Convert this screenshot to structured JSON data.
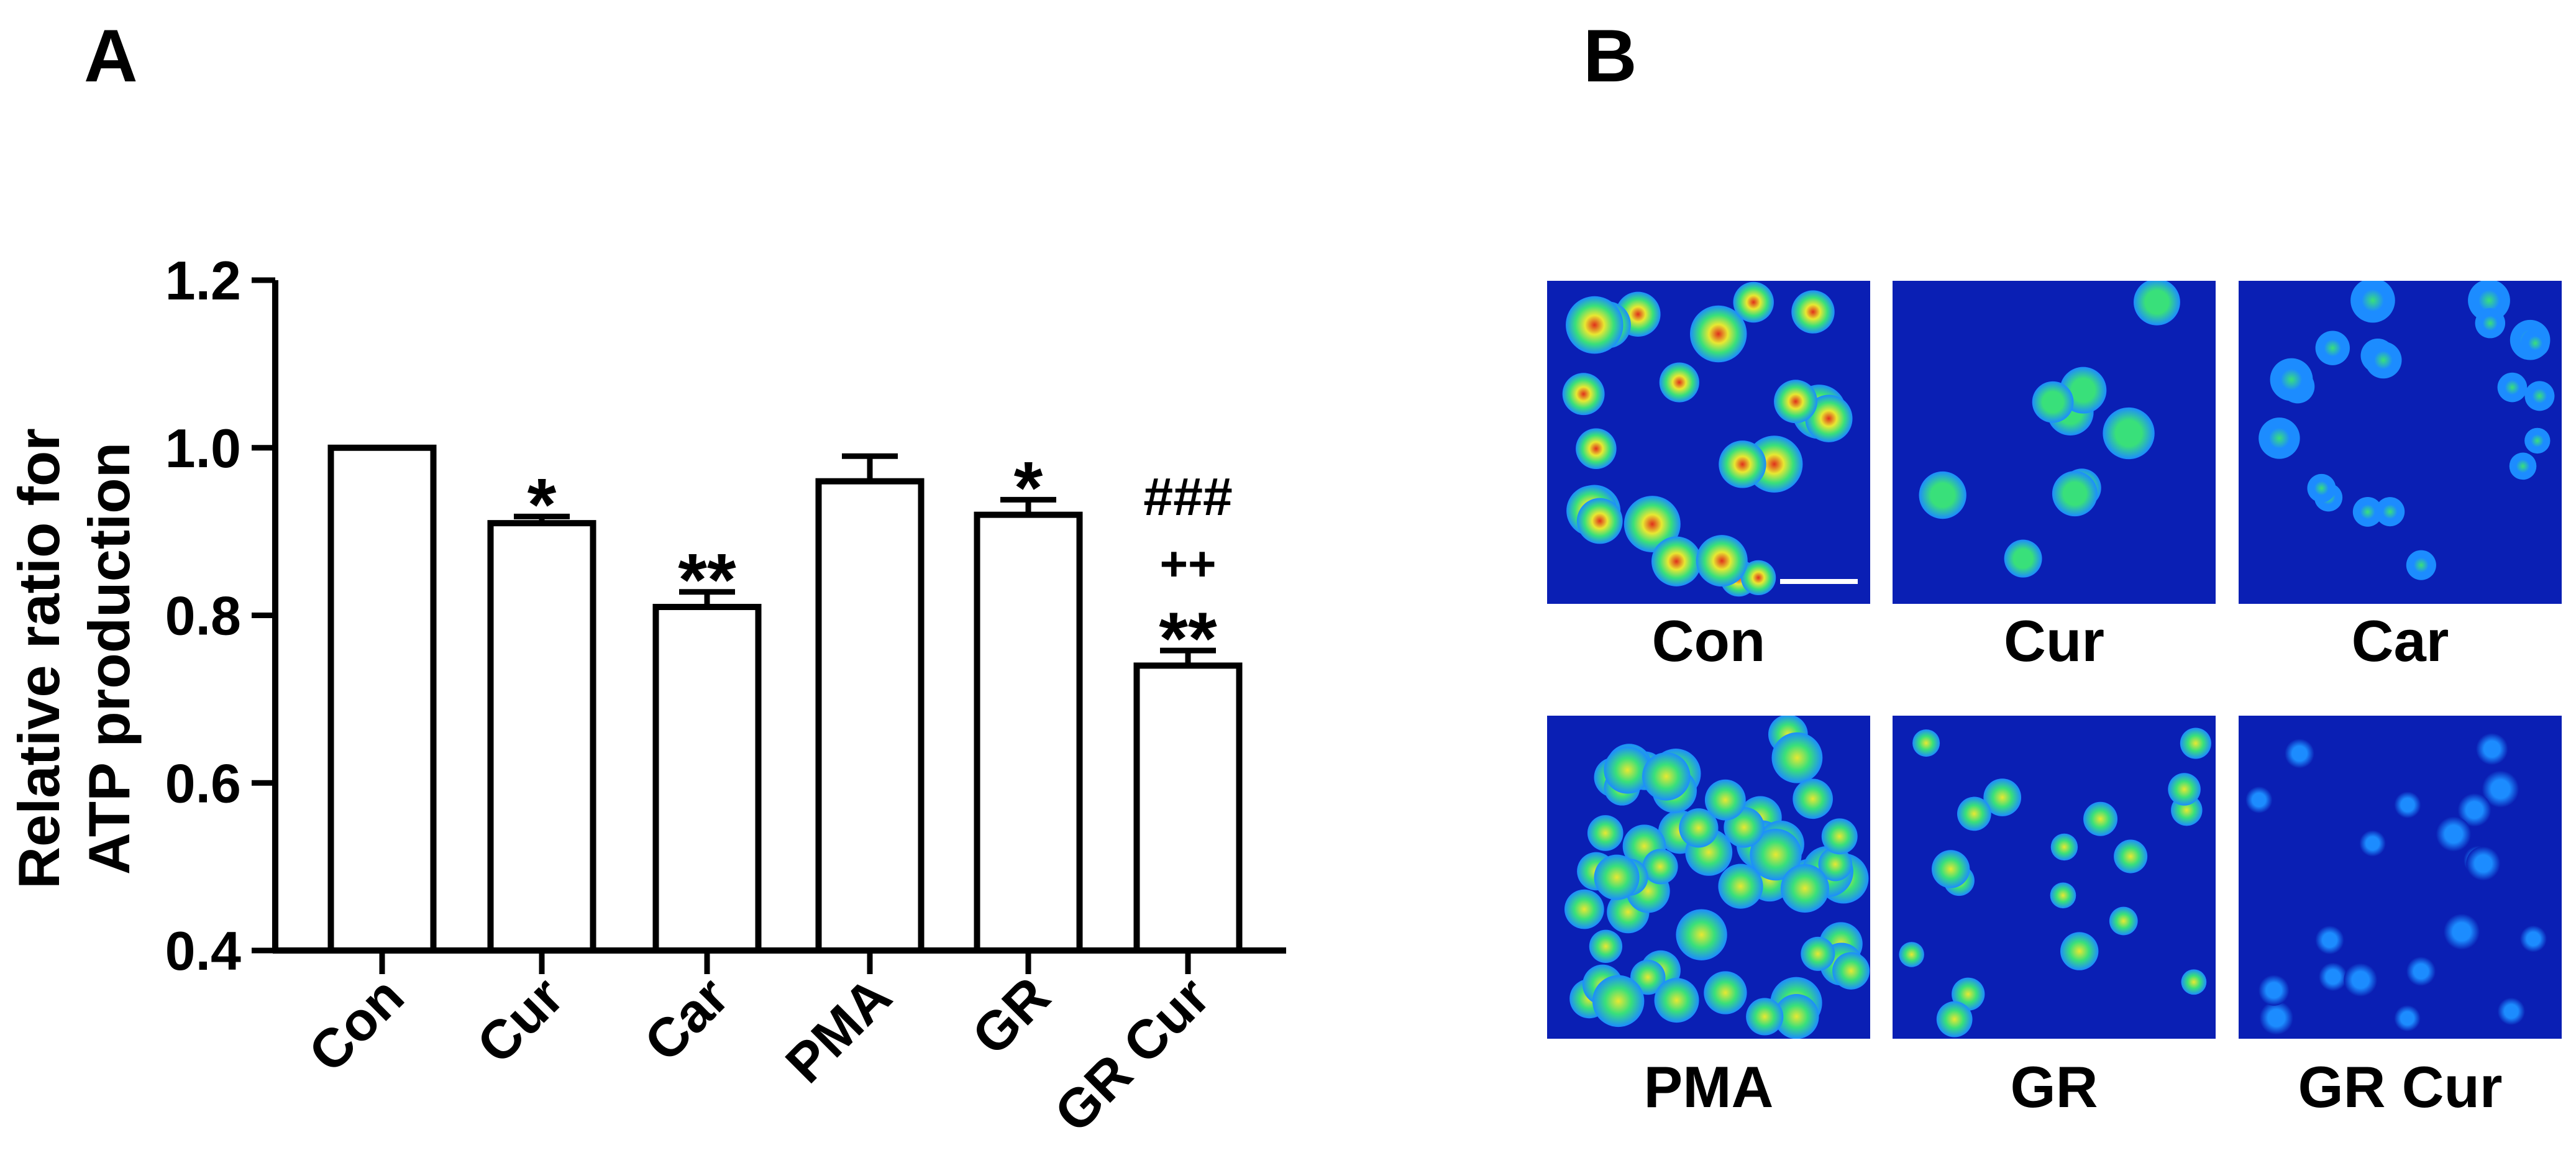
{
  "panels": {
    "a_label": "A",
    "b_label": "B"
  },
  "chart_data": {
    "type": "bar",
    "categories": [
      "Con",
      "Cur",
      "Car",
      "PMA",
      "GR",
      "GR Cur"
    ],
    "values": [
      1.0,
      0.91,
      0.81,
      0.96,
      0.92,
      0.74
    ],
    "errors": [
      0.0,
      0.008,
      0.018,
      0.03,
      0.018,
      0.018
    ],
    "annotations": [
      [],
      [
        "*"
      ],
      [
        "**"
      ],
      [],
      [
        "*"
      ],
      [
        "**",
        "++",
        "###"
      ]
    ],
    "ylabel_lines": [
      "Relative ratio for",
      "ATP production"
    ],
    "xlabel": "",
    "ylim": [
      0.4,
      1.2
    ],
    "yticks": [
      "0.4",
      "0.6",
      "0.8",
      "1.0",
      "1.2"
    ],
    "grid": false,
    "bar_fill": "#ffffff",
    "bar_edge": "#000000"
  },
  "micrographs": {
    "items": [
      {
        "caption": "Con",
        "pattern": "bright-green-yellow-cells",
        "scale_bar": true
      },
      {
        "caption": "Cur",
        "pattern": "dim-green-cells"
      },
      {
        "caption": "Car",
        "pattern": "speckled-blue-cyan-cells"
      },
      {
        "caption": "PMA",
        "pattern": "dense-cyan-green-cells"
      },
      {
        "caption": "GR",
        "pattern": "green-cells"
      },
      {
        "caption": "GR Cur",
        "pattern": "dim-blue-cells"
      }
    ],
    "colors": {
      "background": "#0a1fb4",
      "low": "#1c8cff",
      "mid": "#39e07a",
      "high": "#e8e832",
      "peak": "#e0301c"
    }
  }
}
